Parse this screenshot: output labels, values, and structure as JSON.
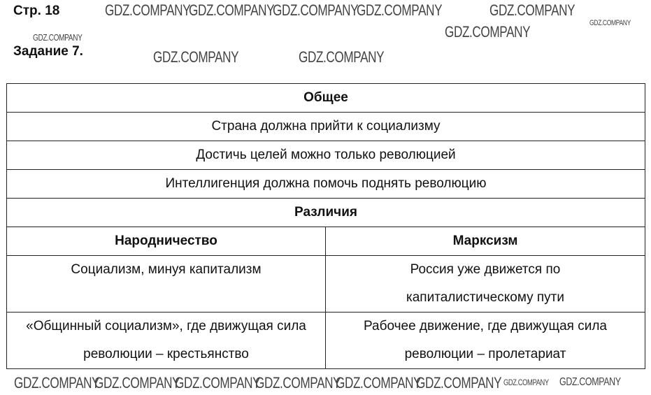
{
  "header": {
    "page": "Стр. 18",
    "task": "Задание 7."
  },
  "watermark": "GDZ.COMPANY",
  "table": {
    "common_header": "Общее",
    "common": [
      "Страна должна прийти к социализму",
      "Достичь целей можно только революцией",
      "Интеллигенция должна помочь поднять революцию"
    ],
    "diff_header": "Различия",
    "columns": [
      "Народничество",
      "Марксизм"
    ],
    "rows": [
      [
        "Социализм, минуя капитализм",
        "Россия уже движется по капиталистическому пути"
      ],
      [
        "«Общинный социализм», где движущая сила революции – крестьянство",
        "Рабочее движение, где движущая сила революции – пролетариат"
      ]
    ]
  }
}
